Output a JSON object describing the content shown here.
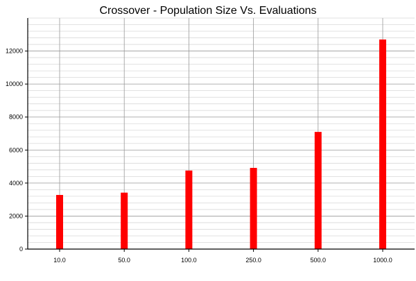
{
  "chart_data": {
    "type": "bar",
    "title": "Crossover - Population Size Vs. Evaluations",
    "xlabel": "",
    "ylabel": "",
    "categories": [
      "10.0",
      "50.0",
      "100.0",
      "250.0",
      "500.0",
      "1000.0"
    ],
    "values": [
      3280,
      3420,
      4760,
      4920,
      7100,
      12700
    ],
    "ylim": [
      0,
      14000
    ],
    "yticks": [
      0,
      2000,
      4000,
      6000,
      8000,
      10000,
      12000
    ],
    "minor_ytick_step": 400,
    "grid": true,
    "legend": "none",
    "bar_color": "#ff0000",
    "major_grid_color": "#9a9a9a",
    "minor_grid_color": "#d9d9d9"
  }
}
